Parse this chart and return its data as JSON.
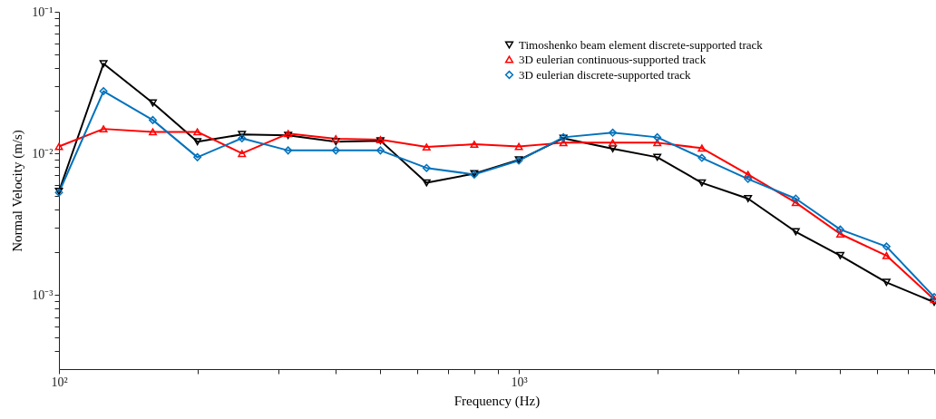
{
  "chart_data": {
    "type": "line",
    "xlabel": "Frequency (Hz)",
    "ylabel": "Normal Velocity (m/s)",
    "log": "xy",
    "legend": "top right",
    "grid": false,
    "x": [
      100,
      125,
      160,
      200,
      250,
      315,
      400,
      500,
      630,
      800,
      1000,
      1250,
      1600,
      2000,
      2500,
      3150,
      4000,
      5000,
      6300,
      8000
    ],
    "xlim": [
      100,
      8000
    ],
    "ylim": [
      0.0003,
      0.1
    ],
    "xticks": [
      {
        "value": 100,
        "label": "10²"
      },
      {
        "value": 200,
        "label": null
      },
      {
        "value": 300,
        "label": null
      },
      {
        "value": 400,
        "label": null
      },
      {
        "value": 500,
        "label": null
      },
      {
        "value": 600,
        "label": null
      },
      {
        "value": 700,
        "label": null
      },
      {
        "value": 800,
        "label": null
      },
      {
        "value": 900,
        "label": null
      },
      {
        "value": 1000,
        "label": "10³"
      },
      {
        "value": 2000,
        "label": null
      },
      {
        "value": 3000,
        "label": null
      },
      {
        "value": 4000,
        "label": null
      },
      {
        "value": 5000,
        "label": null
      },
      {
        "value": 6000,
        "label": null
      },
      {
        "value": 7000,
        "label": null
      },
      {
        "value": 8000,
        "label": null
      }
    ],
    "yticks": [
      {
        "value": 0.0004,
        "label": null
      },
      {
        "value": 0.0005,
        "label": null
      },
      {
        "value": 0.0006,
        "label": null
      },
      {
        "value": 0.0007,
        "label": null
      },
      {
        "value": 0.0008,
        "label": null
      },
      {
        "value": 0.0009,
        "label": null
      },
      {
        "value": 0.001,
        "label": "10⁻³"
      },
      {
        "value": 0.002,
        "label": null
      },
      {
        "value": 0.003,
        "label": null
      },
      {
        "value": 0.004,
        "label": null
      },
      {
        "value": 0.005,
        "label": null
      },
      {
        "value": 0.006,
        "label": null
      },
      {
        "value": 0.007,
        "label": null
      },
      {
        "value": 0.008,
        "label": null
      },
      {
        "value": 0.009,
        "label": null
      },
      {
        "value": 0.01,
        "label": "10⁻²"
      },
      {
        "value": 0.02,
        "label": null
      },
      {
        "value": 0.03,
        "label": null
      },
      {
        "value": 0.04,
        "label": null
      },
      {
        "value": 0.05,
        "label": null
      },
      {
        "value": 0.06,
        "label": null
      },
      {
        "value": 0.07,
        "label": null
      },
      {
        "value": 0.08,
        "label": null
      },
      {
        "value": 0.09,
        "label": null
      },
      {
        "value": 0.1,
        "label": "10⁻¹"
      }
    ],
    "series": [
      {
        "name": "Timoshenko beam element discrete-supported track",
        "color": "#000000",
        "marker": "triangle-down",
        "values": [
          0.0054,
          0.043,
          0.0227,
          0.0121,
          0.0136,
          0.0134,
          0.0121,
          0.0123,
          0.0062,
          0.0072,
          0.009,
          0.0128,
          0.0108,
          0.0094,
          0.0062,
          0.0048,
          0.0028,
          0.0019,
          0.00123,
          0.00089
        ]
      },
      {
        "name": "3D eulerian continuous-supported track",
        "color": "#ff0000",
        "marker": "triangle",
        "values": [
          0.0112,
          0.0149,
          0.0142,
          0.0142,
          0.01,
          0.0138,
          0.0127,
          0.0125,
          0.0111,
          0.0116,
          0.0112,
          0.0119,
          0.0119,
          0.0119,
          0.0109,
          0.0071,
          0.0045,
          0.0027,
          0.0019,
          0.00093
        ]
      },
      {
        "name": "3D eulerian discrete-supported track",
        "color": "#0072bd",
        "marker": "diamond",
        "values": [
          0.0053,
          0.0275,
          0.0172,
          0.0094,
          0.0128,
          0.0105,
          0.0105,
          0.0105,
          0.0079,
          0.0071,
          0.0089,
          0.013,
          0.014,
          0.013,
          0.0093,
          0.0066,
          0.0048,
          0.0029,
          0.0022,
          0.00097
        ]
      }
    ]
  }
}
